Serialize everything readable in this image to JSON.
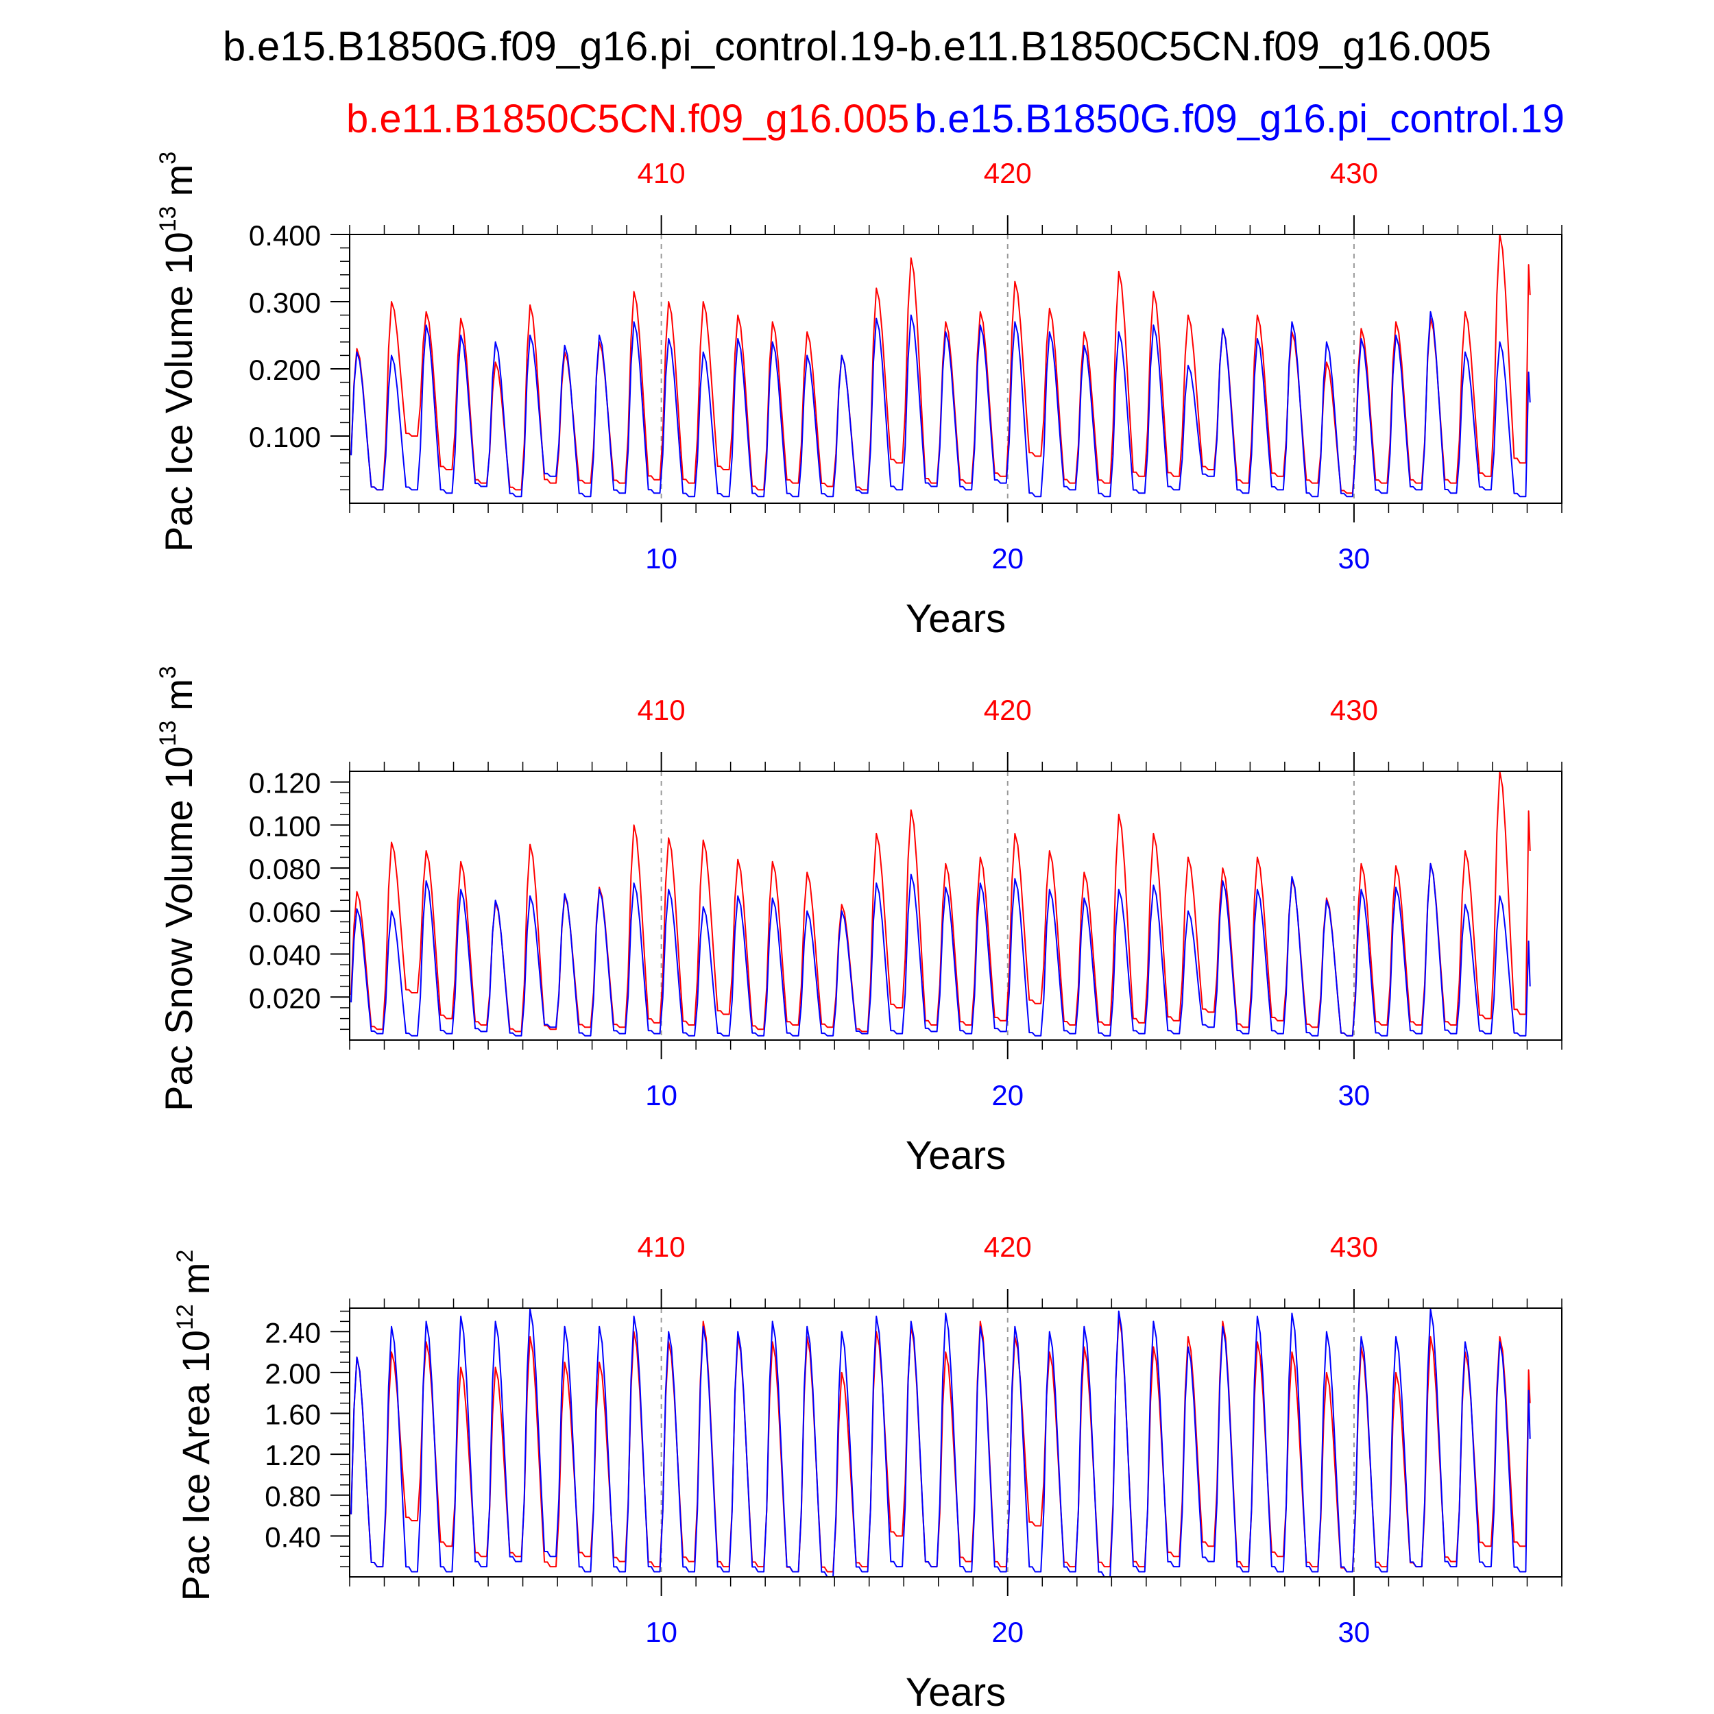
{
  "title": "b.e15.B1850G.f09_g16.pi_control.19-b.e11.B1850C5CN.f09_g16.005",
  "legend": {
    "red_label": "b.e11.B1850C5CN.f09_g16.005",
    "blue_label": "b.e15.B1850G.f09_g16.pi_control.19"
  },
  "colors": {
    "red": "#ff0000",
    "blue": "#0000ff",
    "axis": "#000000",
    "refline": "#9a9a9a"
  },
  "chart_data": [
    {
      "type": "line",
      "ylabel": "Pac Ice Volume 10",
      "ylabel_exp": "13",
      "ylabel_unit": "m",
      "ylabel_unit_exp": "3",
      "xlabel": "Years",
      "xlim": [
        1,
        36
      ],
      "ylim": [
        0.0,
        0.4
      ],
      "yticks": [
        0.1,
        0.2,
        0.3,
        0.4
      ],
      "yticklabels": [
        "0.100",
        "0.200",
        "0.300",
        "0.400"
      ],
      "yminor": 0.02,
      "xticks_bottom": [
        10,
        20,
        30
      ],
      "xticklabels_bottom": [
        "10",
        "20",
        "30"
      ],
      "xticklabels_top": [
        "410",
        "420",
        "430"
      ],
      "grid": "dashed verticals at 10, 20, 30",
      "series": [
        {
          "name": "b.e11.B1850C5CN.f09_g16.005",
          "color": "red",
          "max": [
            0.23,
            0.3,
            0.285,
            0.275,
            0.21,
            0.295,
            0.225,
            0.24,
            0.315,
            0.3,
            0.3,
            0.28,
            0.27,
            0.255,
            0.22,
            0.32,
            0.365,
            0.27,
            0.285,
            0.33,
            0.29,
            0.255,
            0.345,
            0.315,
            0.28,
            0.26,
            0.28,
            0.255,
            0.21,
            0.26,
            0.27,
            0.275,
            0.285,
            0.4
          ],
          "min": [
            0.02,
            0.1,
            0.05,
            0.03,
            0.02,
            0.03,
            0.03,
            0.03,
            0.035,
            0.03,
            0.05,
            0.02,
            0.03,
            0.025,
            0.02,
            0.06,
            0.03,
            0.03,
            0.04,
            0.07,
            0.03,
            0.03,
            0.04,
            0.04,
            0.05,
            0.03,
            0.04,
            0.03,
            0.015,
            0.03,
            0.03,
            0.03,
            0.04,
            0.06
          ],
          "end": 0.31
        },
        {
          "name": "b.e15.B1850G.f09_g16.pi_control.19",
          "color": "blue",
          "max": [
            0.225,
            0.22,
            0.265,
            0.25,
            0.24,
            0.25,
            0.235,
            0.25,
            0.27,
            0.245,
            0.225,
            0.245,
            0.24,
            0.22,
            0.22,
            0.275,
            0.28,
            0.255,
            0.265,
            0.27,
            0.255,
            0.235,
            0.255,
            0.265,
            0.205,
            0.26,
            0.245,
            0.27,
            0.24,
            0.245,
            0.25,
            0.285,
            0.225,
            0.24
          ],
          "min": [
            0.02,
            0.02,
            0.015,
            0.025,
            0.01,
            0.04,
            0.01,
            0.015,
            0.015,
            0.01,
            0.01,
            0.01,
            0.01,
            0.01,
            0.015,
            0.02,
            0.025,
            0.02,
            0.03,
            0.01,
            0.02,
            0.01,
            0.015,
            0.02,
            0.04,
            0.015,
            0.02,
            0.01,
            0.01,
            0.015,
            0.02,
            0.015,
            0.02,
            0.01
          ],
          "end": 0.15
        }
      ]
    },
    {
      "type": "line",
      "ylabel": "Pac Snow Volume 10",
      "ylabel_exp": "13",
      "ylabel_unit": "m",
      "ylabel_unit_exp": "3",
      "xlabel": "Years",
      "xlim": [
        1,
        36
      ],
      "ylim": [
        0.0,
        0.125
      ],
      "yticks": [
        0.02,
        0.04,
        0.06,
        0.08,
        0.1,
        0.12
      ],
      "yticklabels": [
        "0.020",
        "0.040",
        "0.060",
        "0.080",
        "0.100",
        "0.120"
      ],
      "yminor": 0.005,
      "xticks_bottom": [
        10,
        20,
        30
      ],
      "xticklabels_bottom": [
        "10",
        "20",
        "30"
      ],
      "xticklabels_top": [
        "410",
        "420",
        "430"
      ],
      "grid": "dashed verticals at 10, 20, 30",
      "series": [
        {
          "name": "b.e11.B1850C5CN.f09_g16.005",
          "color": "red",
          "max": [
            0.069,
            0.092,
            0.088,
            0.083,
            0.064,
            0.091,
            0.067,
            0.071,
            0.1,
            0.094,
            0.093,
            0.084,
            0.083,
            0.078,
            0.063,
            0.096,
            0.107,
            0.082,
            0.085,
            0.096,
            0.088,
            0.078,
            0.105,
            0.096,
            0.085,
            0.08,
            0.085,
            0.075,
            0.066,
            0.082,
            0.081,
            0.082,
            0.088,
            0.125
          ],
          "min": [
            0.005,
            0.022,
            0.01,
            0.007,
            0.004,
            0.005,
            0.006,
            0.006,
            0.008,
            0.007,
            0.012,
            0.005,
            0.007,
            0.006,
            0.004,
            0.015,
            0.007,
            0.007,
            0.009,
            0.017,
            0.007,
            0.007,
            0.008,
            0.009,
            0.013,
            0.006,
            0.009,
            0.006,
            0.002,
            0.007,
            0.007,
            0.007,
            0.01,
            0.012
          ],
          "end": 0.088
        },
        {
          "name": "b.e15.B1850G.f09_g16.pi_control.19",
          "color": "blue",
          "max": [
            0.061,
            0.06,
            0.074,
            0.07,
            0.065,
            0.067,
            0.068,
            0.07,
            0.073,
            0.07,
            0.062,
            0.067,
            0.066,
            0.06,
            0.06,
            0.073,
            0.077,
            0.071,
            0.073,
            0.075,
            0.07,
            0.066,
            0.07,
            0.072,
            0.06,
            0.074,
            0.07,
            0.076,
            0.065,
            0.07,
            0.071,
            0.082,
            0.063,
            0.067
          ],
          "min": [
            0.003,
            0.002,
            0.003,
            0.004,
            0.002,
            0.006,
            0.002,
            0.003,
            0.003,
            0.002,
            0.002,
            0.002,
            0.002,
            0.002,
            0.003,
            0.003,
            0.004,
            0.003,
            0.004,
            0.002,
            0.003,
            0.002,
            0.003,
            0.003,
            0.006,
            0.003,
            0.003,
            0.002,
            0.002,
            0.002,
            0.003,
            0.003,
            0.003,
            0.002
          ],
          "end": 0.025
        }
      ]
    },
    {
      "type": "line",
      "ylabel": "Pac Ice Area 10",
      "ylabel_exp": "12",
      "ylabel_unit": "m",
      "ylabel_unit_exp": "2",
      "xlabel": "Years",
      "xlim": [
        1,
        36
      ],
      "ylim": [
        0.0,
        2.63
      ],
      "yticks": [
        0.4,
        0.8,
        1.2,
        1.6,
        2.0,
        2.4
      ],
      "yticklabels": [
        "0.40",
        "0.80",
        "1.20",
        "1.60",
        "2.00",
        "2.40"
      ],
      "yminor": 0.1,
      "xticks_bottom": [
        10,
        20,
        30
      ],
      "xticklabels_bottom": [
        "10",
        "20",
        "30"
      ],
      "xticklabels_top": [
        "410",
        "420",
        "430"
      ],
      "grid": "dashed verticals at 10, 20, 30",
      "series": [
        {
          "name": "b.e11.B1850C5CN.f09_g16.005",
          "color": "red",
          "max": [
            2.15,
            2.2,
            2.3,
            2.05,
            2.05,
            2.35,
            2.1,
            2.1,
            2.4,
            2.3,
            2.5,
            2.35,
            2.3,
            2.35,
            2.0,
            2.4,
            2.45,
            2.2,
            2.5,
            2.35,
            2.2,
            2.25,
            2.55,
            2.25,
            2.35,
            2.5,
            2.3,
            2.2,
            2.0,
            2.25,
            2.0,
            2.35,
            2.2,
            2.35
          ],
          "min": [
            0.1,
            0.55,
            0.3,
            0.2,
            0.2,
            0.1,
            0.2,
            0.15,
            0.1,
            0.15,
            0.1,
            0.1,
            0.05,
            0.05,
            0.1,
            0.4,
            0.1,
            0.15,
            0.1,
            0.5,
            0.1,
            0.1,
            0.1,
            0.2,
            0.3,
            0.1,
            0.2,
            0.1,
            0.05,
            0.1,
            0.1,
            0.15,
            0.3,
            0.3
          ],
          "end": 1.7
        },
        {
          "name": "b.e15.B1850G.f09_g16.pi_control.19",
          "color": "blue",
          "max": [
            2.15,
            2.45,
            2.5,
            2.55,
            2.5,
            2.62,
            2.45,
            2.45,
            2.55,
            2.4,
            2.45,
            2.4,
            2.5,
            2.45,
            2.4,
            2.55,
            2.5,
            2.58,
            2.45,
            2.45,
            2.4,
            2.45,
            2.6,
            2.5,
            2.25,
            2.45,
            2.55,
            2.58,
            2.4,
            2.35,
            2.35,
            2.62,
            2.3,
            2.3
          ],
          "min": [
            0.1,
            0.05,
            0.05,
            0.1,
            0.15,
            0.2,
            0.05,
            0.05,
            0.05,
            0.05,
            0.05,
            0.05,
            0.05,
            0.0,
            0.05,
            0.1,
            0.1,
            0.05,
            0.05,
            0.05,
            0.05,
            0.0,
            0.05,
            0.1,
            0.15,
            0.05,
            0.05,
            0.05,
            0.05,
            0.05,
            0.1,
            0.1,
            0.1,
            0.05
          ],
          "end": 1.35
        }
      ]
    }
  ]
}
